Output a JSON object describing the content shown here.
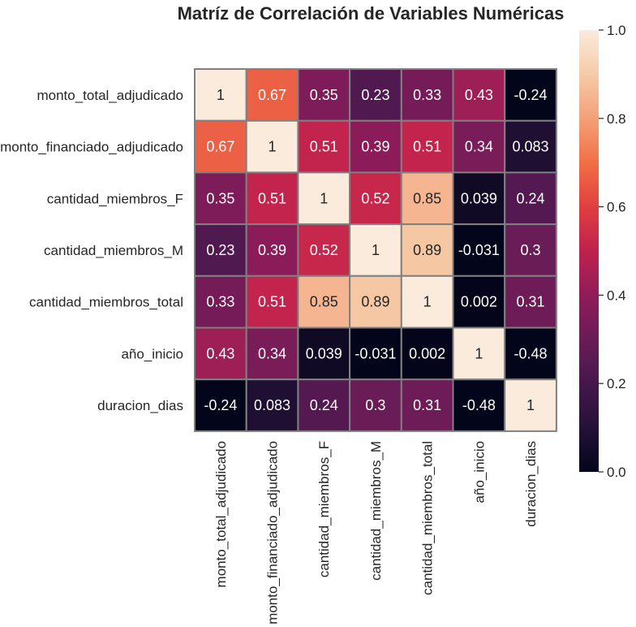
{
  "chart_data": {
    "type": "heatmap",
    "title": "Matríz de Correlación de Variables Numéricas",
    "xlabel": "",
    "ylabel": "",
    "x_categories": [
      "monto_total_adjudicado",
      "monto_financiado_adjudicado",
      "cantidad_miembros_F",
      "cantidad_miembros_M",
      "cantidad_miembros_total",
      "año_inicio",
      "duracion_dias"
    ],
    "y_categories": [
      "monto_total_adjudicado",
      "monto_financiado_adjudicado",
      "cantidad_miembros_F",
      "cantidad_miembros_M",
      "cantidad_miembros_total",
      "año_inicio",
      "duracion_dias"
    ],
    "values": [
      [
        1,
        0.67,
        0.35,
        0.23,
        0.33,
        0.43,
        -0.24
      ],
      [
        0.67,
        1,
        0.51,
        0.39,
        0.51,
        0.34,
        0.083
      ],
      [
        0.35,
        0.51,
        1,
        0.52,
        0.85,
        0.039,
        0.24
      ],
      [
        0.23,
        0.39,
        0.52,
        1,
        0.89,
        -0.031,
        0.3
      ],
      [
        0.33,
        0.51,
        0.85,
        0.89,
        1,
        0.002,
        0.31
      ],
      [
        0.43,
        0.34,
        0.039,
        -0.031,
        0.002,
        1,
        -0.48
      ],
      [
        -0.24,
        0.083,
        0.24,
        0.3,
        0.31,
        -0.48,
        1
      ]
    ],
    "cell_labels": [
      [
        "1",
        "0.67",
        "0.35",
        "0.23",
        "0.33",
        "0.43",
        "-0.24"
      ],
      [
        "0.67",
        "1",
        "0.51",
        "0.39",
        "0.51",
        "0.34",
        "0.083"
      ],
      [
        "0.35",
        "0.51",
        "1",
        "0.52",
        "0.85",
        "0.039",
        "0.24"
      ],
      [
        "0.23",
        "0.39",
        "0.52",
        "1",
        "0.89",
        "-0.031",
        "0.3"
      ],
      [
        "0.33",
        "0.51",
        "0.85",
        "0.89",
        "1",
        "0.002",
        "0.31"
      ],
      [
        "0.43",
        "0.34",
        "0.039",
        "-0.031",
        "0.002",
        "1",
        "-0.48"
      ],
      [
        "-0.24",
        "0.083",
        "0.24",
        "0.3",
        "0.31",
        "-0.48",
        "1"
      ]
    ],
    "colormap": "rocket",
    "color_range": [
      0,
      1
    ],
    "colorbar_ticks": [
      "0.0",
      "0.2",
      "0.4",
      "0.6",
      "0.8",
      "1.0"
    ],
    "colorbar_tick_values": [
      0,
      0.2,
      0.4,
      0.6,
      0.8,
      1.0
    ],
    "cell_border_color": "#808080",
    "annotation_dark_text": "#262626",
    "annotation_light_text": "#ffffff",
    "legend": "colorbar-right"
  }
}
